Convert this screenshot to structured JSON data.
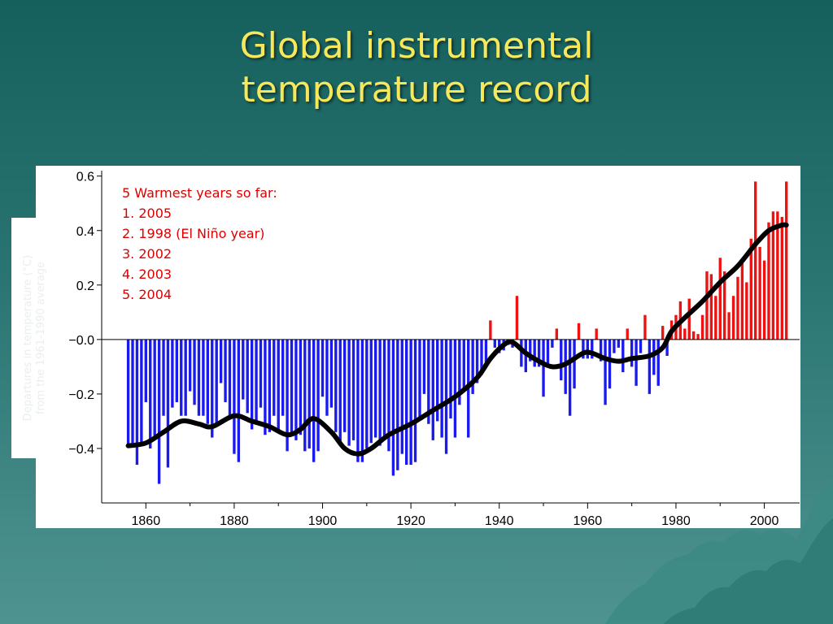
{
  "slide": {
    "title_line1": "Global instrumental",
    "title_line2": "temperature record"
  },
  "colors": {
    "background": "#1f6a67",
    "title": "#f6e85a",
    "positive_bar": "#ee1111",
    "negative_bar": "#1a1aee",
    "smooth_line": "#000000",
    "annotation": "#dd0000"
  },
  "chart_data": {
    "type": "bar",
    "ylabel_line1": "Departures in temperature (°C)",
    "ylabel_line2": "from the 1961-1990 average",
    "xlim": [
      1850,
      2008
    ],
    "ylim": [
      -0.6,
      0.62
    ],
    "x_ticks": [
      "1860",
      "1880",
      "1900",
      "1920",
      "1940",
      "1960",
      "1980",
      "2000"
    ],
    "y_ticks": [
      {
        "value": 0.6,
        "label": "0.6"
      },
      {
        "value": 0.4,
        "label": "0.4"
      },
      {
        "value": 0.2,
        "label": "0.2"
      },
      {
        "value": 0.0,
        "label": "−0.0"
      },
      {
        "value": -0.2,
        "label": "−0.2"
      },
      {
        "value": -0.4,
        "label": "−0.4"
      }
    ],
    "annotation": {
      "heading": "5 Warmest years so far:",
      "items": [
        "1.  2005",
        "2.  1998 (El Niño year)",
        "3.  2002",
        "4.  2003",
        "5.  2004"
      ]
    },
    "series": [
      {
        "type": "bar",
        "start_year": 1856,
        "values": [
          -0.39,
          -0.38,
          -0.46,
          -0.38,
          -0.23,
          -0.4,
          -0.36,
          -0.53,
          -0.28,
          -0.47,
          -0.25,
          -0.23,
          -0.28,
          -0.28,
          -0.19,
          -0.24,
          -0.28,
          -0.28,
          -0.31,
          -0.36,
          -0.32,
          -0.16,
          -0.23,
          -0.29,
          -0.42,
          -0.45,
          -0.22,
          -0.27,
          -0.33,
          -0.3,
          -0.25,
          -0.35,
          -0.34,
          -0.28,
          -0.33,
          -0.28,
          -0.41,
          -0.35,
          -0.37,
          -0.35,
          -0.41,
          -0.4,
          -0.45,
          -0.41,
          -0.21,
          -0.28,
          -0.25,
          -0.34,
          -0.38,
          -0.34,
          -0.39,
          -0.37,
          -0.45,
          -0.45,
          -0.4,
          -0.38,
          -0.36,
          -0.39,
          -0.36,
          -0.41,
          -0.5,
          -0.48,
          -0.42,
          -0.46,
          -0.46,
          -0.45,
          -0.29,
          -0.2,
          -0.31,
          -0.37,
          -0.3,
          -0.36,
          -0.42,
          -0.29,
          -0.36,
          -0.5,
          -0.22,
          -0.28,
          -0.3,
          -0.22,
          -0.33,
          -0.3,
          -0.24,
          -0.31,
          -0.29,
          -0.26,
          -0.33,
          -0.24,
          -0.35,
          -0.3,
          -0.17,
          -0.36,
          -0.08,
          -0.27,
          -0.19,
          -0.24,
          -0.2,
          -0.17,
          -0.09,
          -0.02,
          0.01,
          -0.14,
          -0.11,
          -0.04,
          -0.03,
          -0.06,
          -0.01,
          0.02,
          -0.19,
          -0.13,
          -0.14,
          -0.13,
          -0.16,
          -0.18,
          -0.09,
          -0.1,
          -0.15,
          0.0,
          -0.15,
          -0.07,
          -0.12,
          -0.01,
          -0.06,
          -0.15,
          -0.09,
          -0.14,
          -0.27,
          -0.22,
          -0.13,
          -0.09,
          -0.16,
          -0.11,
          -0.01,
          -0.05,
          -0.16,
          0.04,
          0.03,
          -0.09,
          -0.1,
          0.09,
          0.08,
          -0.09,
          -0.01,
          0.03,
          0.02,
          0.09,
          -0.01,
          0.01,
          0.05,
          0.03,
          0.02,
          0.02,
          -0.03,
          -0.02,
          0.01,
          0.04,
          0.03,
          0.05,
          0.06,
          0.08,
          0.1,
          0.11
        ],
        "overrides": {
          "1938": 0.07,
          "1944": 0.16,
          "1953": 0.04,
          "1958": 0.06,
          "1962": 0.04,
          "1969": 0.04,
          "1973": 0.09,
          "1977": 0.05,
          "1979": 0.07,
          "1980": 0.09,
          "1981": 0.14,
          "1982": 0.04,
          "1983": 0.15,
          "1984": 0.03,
          "1985": 0.02,
          "1986": 0.09,
          "1987": 0.25,
          "1988": 0.24,
          "1989": 0.16,
          "1990": 0.3,
          "1991": 0.25,
          "1992": 0.1,
          "1993": 0.16,
          "1994": 0.23,
          "1995": 0.28,
          "1996": 0.21,
          "1997": 0.37,
          "1998": 0.58,
          "1999": 0.34,
          "2000": 0.29,
          "2001": 0.43,
          "2002": 0.47,
          "2003": 0.47,
          "2004": 0.45,
          "2005": 0.58,
          "1976": -0.17,
          "1975": -0.13,
          "1974": -0.2,
          "1971": -0.17,
          "1972": -0.05,
          "1970": -0.1,
          "1968": -0.12,
          "1967": -0.03,
          "1966": -0.05,
          "1965": -0.18,
          "1964": -0.24,
          "1963": -0.08,
          "1961": -0.07,
          "1960": -0.07,
          "1959": -0.07,
          "1957": -0.18,
          "1956": -0.28,
          "1955": -0.2,
          "1954": -0.15,
          "1952": -0.03,
          "1951": -0.09,
          "1950": -0.21,
          "1949": -0.1,
          "1948": -0.1,
          "1947": -0.08,
          "1946": -0.12,
          "1945": -0.1,
          "1943": -0.03,
          "1942": -0.02,
          "1941": -0.04,
          "1940": -0.05,
          "1939": -0.03,
          "1937": -0.1,
          "1936": -0.13,
          "1935": -0.16,
          "1934": -0.2,
          "1933": -0.36,
          "1932": -0.18,
          "1931": -0.24
        }
      },
      {
        "type": "smooth",
        "points": [
          [
            1856,
            -0.39
          ],
          [
            1860,
            -0.38
          ],
          [
            1864,
            -0.34
          ],
          [
            1868,
            -0.3
          ],
          [
            1872,
            -0.31
          ],
          [
            1875,
            -0.32
          ],
          [
            1880,
            -0.28
          ],
          [
            1884,
            -0.3
          ],
          [
            1888,
            -0.32
          ],
          [
            1892,
            -0.35
          ],
          [
            1895,
            -0.33
          ],
          [
            1898,
            -0.29
          ],
          [
            1902,
            -0.34
          ],
          [
            1905,
            -0.4
          ],
          [
            1908,
            -0.42
          ],
          [
            1911,
            -0.4
          ],
          [
            1915,
            -0.35
          ],
          [
            1920,
            -0.31
          ],
          [
            1925,
            -0.26
          ],
          [
            1930,
            -0.21
          ],
          [
            1935,
            -0.14
          ],
          [
            1938,
            -0.07
          ],
          [
            1941,
            -0.02
          ],
          [
            1943,
            -0.01
          ],
          [
            1946,
            -0.05
          ],
          [
            1949,
            -0.08
          ],
          [
            1952,
            -0.1
          ],
          [
            1955,
            -0.09
          ],
          [
            1959,
            -0.05
          ],
          [
            1961,
            -0.05
          ],
          [
            1964,
            -0.07
          ],
          [
            1967,
            -0.08
          ],
          [
            1970,
            -0.07
          ],
          [
            1974,
            -0.06
          ],
          [
            1977,
            -0.03
          ],
          [
            1979,
            0.03
          ],
          [
            1982,
            0.08
          ],
          [
            1986,
            0.14
          ],
          [
            1990,
            0.21
          ],
          [
            1994,
            0.27
          ],
          [
            1998,
            0.35
          ],
          [
            2001,
            0.4
          ],
          [
            2004,
            0.42
          ],
          [
            2005,
            0.42
          ]
        ]
      }
    ]
  }
}
